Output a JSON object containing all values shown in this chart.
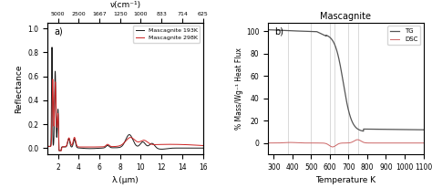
{
  "panel_a_label": "a)",
  "panel_b_label": "b)",
  "title_b": "Mascagnite",
  "xlabel_a": "λ.(μm)",
  "ylabel_a": "Reflectance",
  "xlabel_b": "Temperature K",
  "ylabel_b": "% Mass/Wg⁻¹ Heat Flux",
  "top_axis_label": "ν(cm⁻¹)",
  "legend_a": [
    "Mascagnite 193K",
    "Mascagnite 298K"
  ],
  "legend_b": [
    "TG",
    "DSC"
  ],
  "color_193K": "#1a1a1a",
  "color_298K": "#cc2222",
  "color_TG": "#555555",
  "color_DSC": "#cc6666",
  "xlim_a": [
    1,
    16
  ],
  "ylim_a": [
    -0.05,
    1.05
  ],
  "xlim_b": [
    270,
    1100
  ],
  "ylim_b": [
    -10,
    108
  ],
  "xticks_a": [
    2,
    4,
    6,
    8,
    10,
    12,
    14,
    16
  ],
  "yticks_a": [
    0.0,
    0.2,
    0.4,
    0.6,
    0.8,
    1.0
  ],
  "xticks_b": [
    300,
    400,
    500,
    600,
    700,
    800,
    900,
    1000,
    1100
  ],
  "yticks_b": [
    0,
    20,
    40,
    60,
    80,
    100
  ],
  "top_ticks_wavenumber": [
    5000,
    2500,
    1667,
    1250,
    1000,
    833,
    714,
    625
  ],
  "vlines_b": [
    375,
    500,
    600,
    625,
    700,
    750
  ]
}
